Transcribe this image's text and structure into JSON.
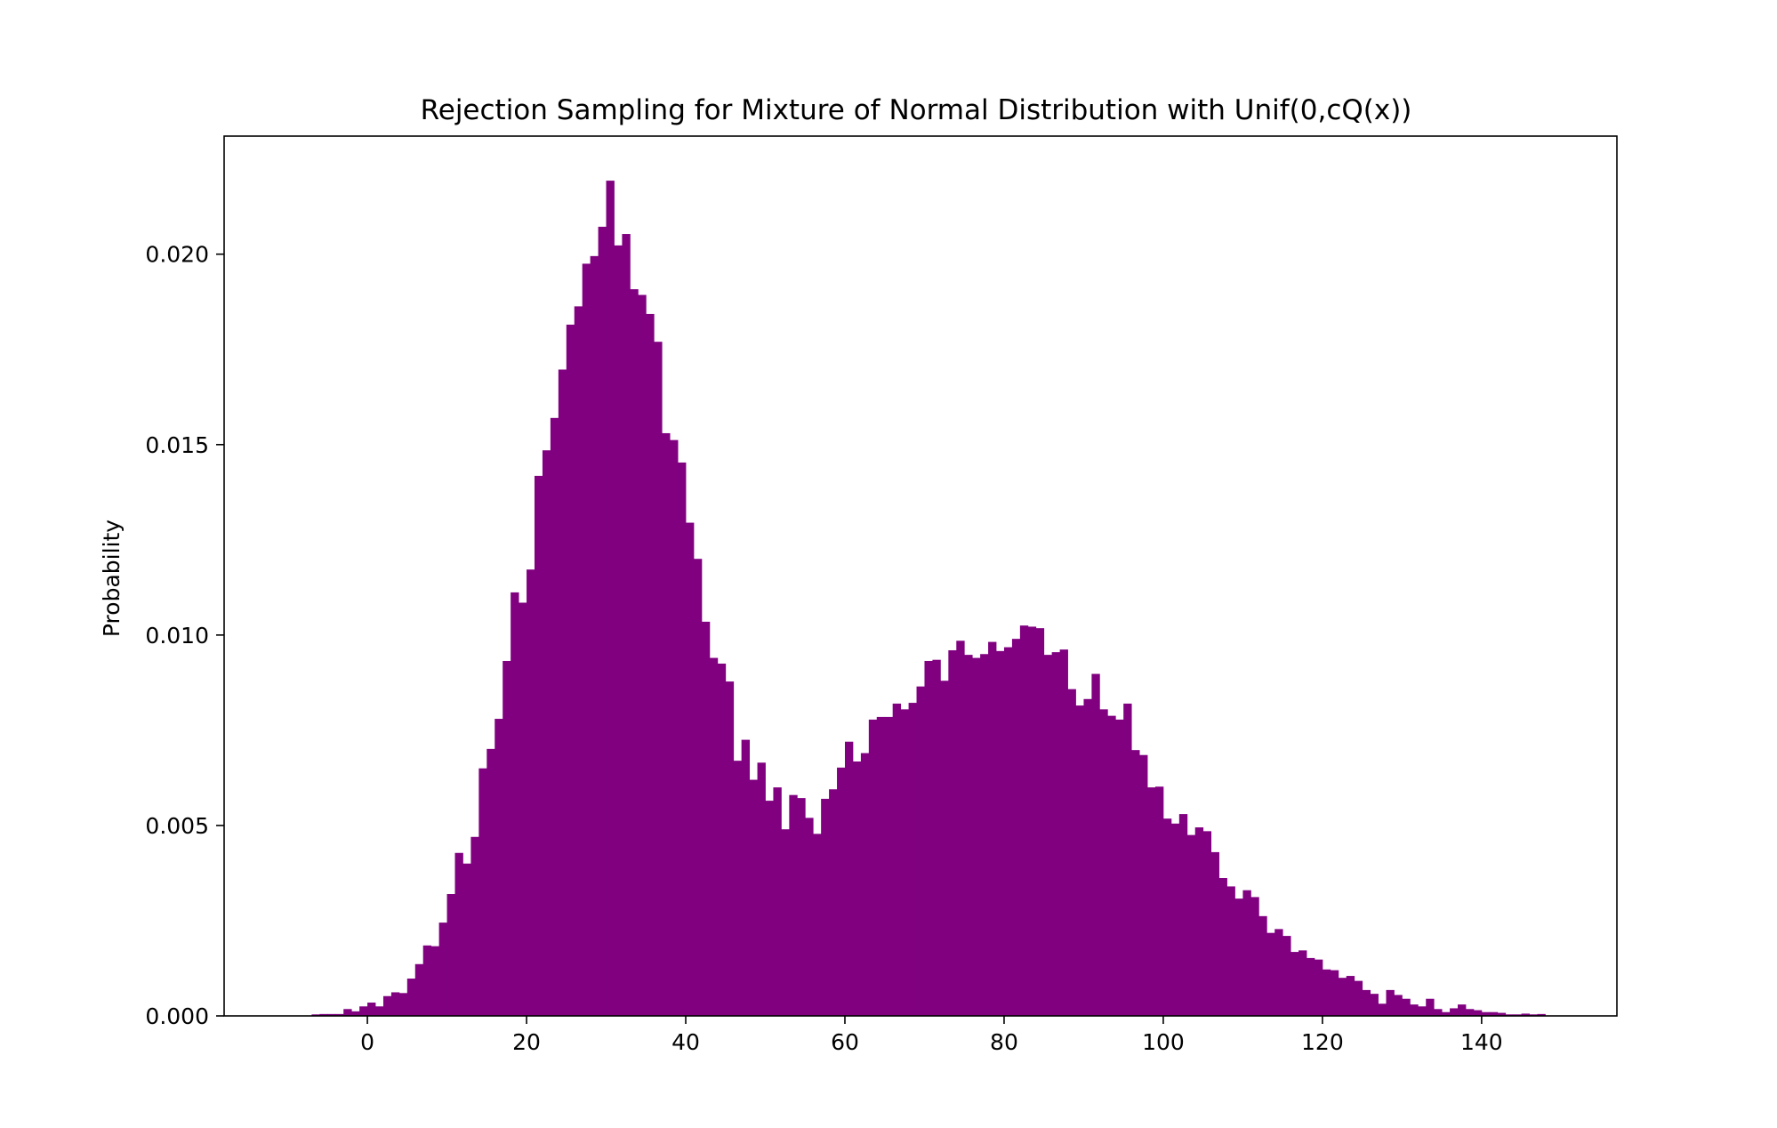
{
  "chart_data": {
    "type": "bar",
    "title": "Rejection Sampling for Mixture of Normal Distribution with Unif(0,cQ(x))",
    "xlabel": "",
    "ylabel": "Probability",
    "xlim": [
      -18,
      157
    ],
    "ylim": [
      0,
      0.0231
    ],
    "bar_color": "#800080",
    "bin_width": 1,
    "bin_start": -7,
    "x_ticks": [
      0,
      20,
      40,
      60,
      80,
      100,
      120,
      140
    ],
    "x_tick_labels": [
      "0",
      "20",
      "40",
      "60",
      "80",
      "100",
      "120",
      "140"
    ],
    "y_ticks": [
      0.0,
      0.005,
      0.01,
      0.015,
      0.02
    ],
    "y_tick_labels": [
      "0.000",
      "0.005",
      "0.010",
      "0.015",
      "0.020"
    ],
    "grid": false,
    "values": [
      4e-05,
      5e-05,
      5e-05,
      5e-05,
      0.00018,
      0.00012,
      0.00025,
      0.00035,
      0.00025,
      0.00052,
      0.00062,
      0.0006,
      0.00098,
      0.00136,
      0.00185,
      0.00183,
      0.00245,
      0.0032,
      0.00428,
      0.004,
      0.0047,
      0.0065,
      0.00701,
      0.0078,
      0.00932,
      0.01112,
      0.01085,
      0.01172,
      0.01418,
      0.01485,
      0.0157,
      0.01697,
      0.01815,
      0.01863,
      0.01975,
      0.01995,
      0.02072,
      0.02193,
      0.02023,
      0.02053,
      0.01908,
      0.01893,
      0.01843,
      0.0177,
      0.0153,
      0.01512,
      0.01453,
      0.01295,
      0.012,
      0.01035,
      0.0094,
      0.00925,
      0.00878,
      0.0067,
      0.00725,
      0.0062,
      0.00665,
      0.00565,
      0.006,
      0.0049,
      0.0058,
      0.00572,
      0.0052,
      0.00478,
      0.0057,
      0.00595,
      0.00652,
      0.0072,
      0.00668,
      0.0069,
      0.00778,
      0.00785,
      0.00785,
      0.0082,
      0.00805,
      0.00822,
      0.00865,
      0.00932,
      0.00935,
      0.0088,
      0.0096,
      0.00985,
      0.00948,
      0.0094,
      0.0095,
      0.00982,
      0.00958,
      0.00968,
      0.0099,
      0.01025,
      0.01022,
      0.01018,
      0.00948,
      0.00955,
      0.00962,
      0.00858,
      0.00815,
      0.00832,
      0.00898,
      0.00805,
      0.00788,
      0.00778,
      0.0082,
      0.00698,
      0.00685,
      0.006,
      0.00602,
      0.00518,
      0.00505,
      0.0053,
      0.00475,
      0.00495,
      0.00485,
      0.0043,
      0.00362,
      0.0034,
      0.00308,
      0.0033,
      0.00312,
      0.00262,
      0.00218,
      0.00228,
      0.0021,
      0.00168,
      0.00172,
      0.00152,
      0.00148,
      0.00122,
      0.0012,
      0.001,
      0.00105,
      0.00092,
      0.00068,
      0.00058,
      0.00032,
      0.00068,
      0.00055,
      0.00045,
      0.0003,
      0.00025,
      0.00045,
      0.00018,
      0.0001,
      0.0002,
      0.0003,
      0.00018,
      0.00015,
      0.0001,
      0.0001,
      8e-05,
      4e-05,
      4e-05,
      6e-05,
      4e-05,
      5e-05
    ]
  }
}
